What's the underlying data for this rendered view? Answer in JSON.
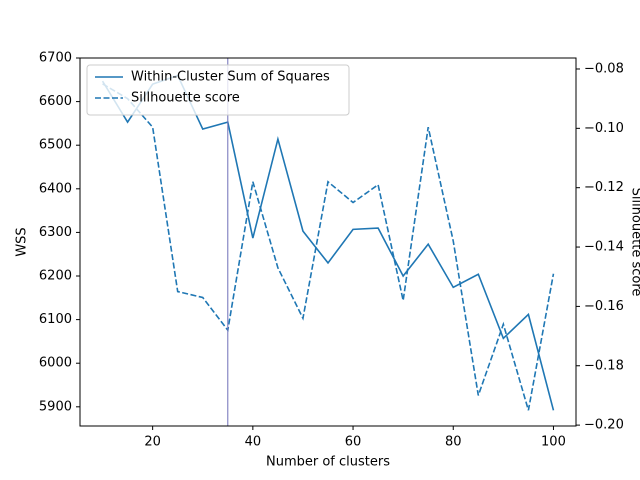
{
  "chart_data": {
    "type": "line",
    "xlabel": "Number of clusters",
    "ylabel": "WSS",
    "y2label": "Sillhouette score",
    "x": [
      10,
      15,
      20,
      25,
      30,
      35,
      40,
      45,
      50,
      55,
      60,
      65,
      70,
      75,
      80,
      85,
      90,
      95,
      100
    ],
    "series": [
      {
        "name": "Within-Cluster Sum of Squares",
        "color": "#1f77b4",
        "linestyle": "solid",
        "axis": "y",
        "values": [
          6647,
          6553,
          6640,
          6660,
          6537,
          6553,
          6287,
          6514,
          6303,
          6230,
          6307,
          6310,
          6200,
          6273,
          6174,
          6204,
          6057,
          6112,
          5892
        ]
      },
      {
        "name": "Sillhouette score",
        "color": "#1f77b4",
        "linestyle": "dashed",
        "axis": "y2",
        "values": [
          -0.085,
          -0.09,
          -0.0996,
          -0.155,
          -0.157,
          -0.168,
          -0.118,
          -0.147,
          -0.164,
          -0.118,
          -0.125,
          -0.119,
          -0.158,
          -0.0996,
          -0.138,
          -0.19,
          -0.166,
          -0.195,
          -0.149
        ]
      }
    ],
    "xlim": [
      5.5,
      104.5
    ],
    "xticks": [
      20,
      40,
      60,
      80,
      100
    ],
    "ylim": [
      5856,
      6700
    ],
    "yticks": [
      5900,
      6000,
      6100,
      6200,
      6300,
      6400,
      6500,
      6600,
      6700
    ],
    "y2lim": [
      -0.2003,
      -0.0763
    ],
    "y2ticks": [
      {
        "value": -0.2,
        "label": "−0.20"
      },
      {
        "value": -0.18,
        "label": "−0.18"
      },
      {
        "value": -0.16,
        "label": "−0.16"
      },
      {
        "value": -0.14,
        "label": "−0.14"
      },
      {
        "value": -0.12,
        "label": "−0.12"
      },
      {
        "value": -0.1,
        "label": "−0.10"
      },
      {
        "value": -0.08,
        "label": "−0.08"
      }
    ],
    "vline": {
      "x": 35,
      "color": "#7070b8"
    },
    "legend": "upper left"
  }
}
